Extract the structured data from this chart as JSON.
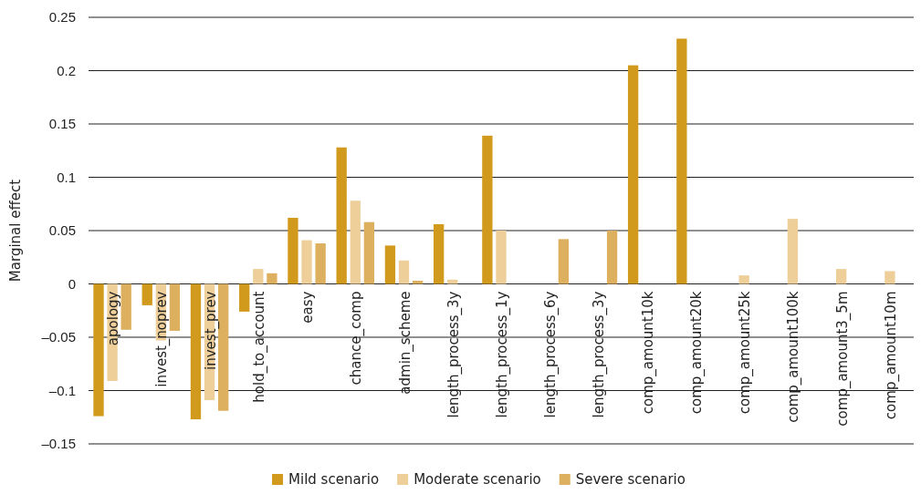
{
  "chart_data": {
    "type": "bar",
    "ylabel": "Marginal effect",
    "categories": [
      "apology",
      "invest_noprev",
      "invest_prev",
      "hold_to_account",
      "easy",
      "chance_comp",
      "admin_scheme",
      "length_process_3y",
      "length_process_1y",
      "length_process_6y",
      "length_process_3y",
      "comp_amount10k",
      "comp_amount20k",
      "comp_amount25k",
      "comp_amount100k",
      "comp_amount3_5m",
      "comp_amount10m"
    ],
    "series": [
      {
        "name": "Mild scenario",
        "color": "#d19a1c",
        "values": [
          -0.124,
          -0.02,
          -0.127,
          -0.026,
          0.062,
          0.128,
          0.036,
          0.056,
          0.139,
          null,
          null,
          0.205,
          0.23,
          null,
          null,
          null,
          null
        ]
      },
      {
        "name": "Moderate scenario",
        "color": "#eecf99",
        "values": [
          -0.091,
          -0.053,
          -0.109,
          0.014,
          0.041,
          0.078,
          0.022,
          0.004,
          0.05,
          null,
          null,
          null,
          null,
          0.008,
          0.061,
          0.014,
          0.012
        ]
      },
      {
        "name": "Severe scenario",
        "color": "#ddb060",
        "values": [
          -0.043,
          -0.044,
          -0.119,
          0.01,
          0.038,
          0.058,
          0.003,
          null,
          null,
          0.042,
          0.05,
          null,
          null,
          null,
          null,
          null,
          null
        ]
      }
    ],
    "ylim": [
      -0.15,
      0.25
    ],
    "yticks": [
      {
        "value": -0.15,
        "label": "–0.15"
      },
      {
        "value": -0.1,
        "label": "–0.1"
      },
      {
        "value": -0.05,
        "label": "–0.05"
      },
      0,
      0.05,
      0.1,
      0.15,
      0.2,
      0.25
    ],
    "grid": "y",
    "legend": "bottom"
  }
}
